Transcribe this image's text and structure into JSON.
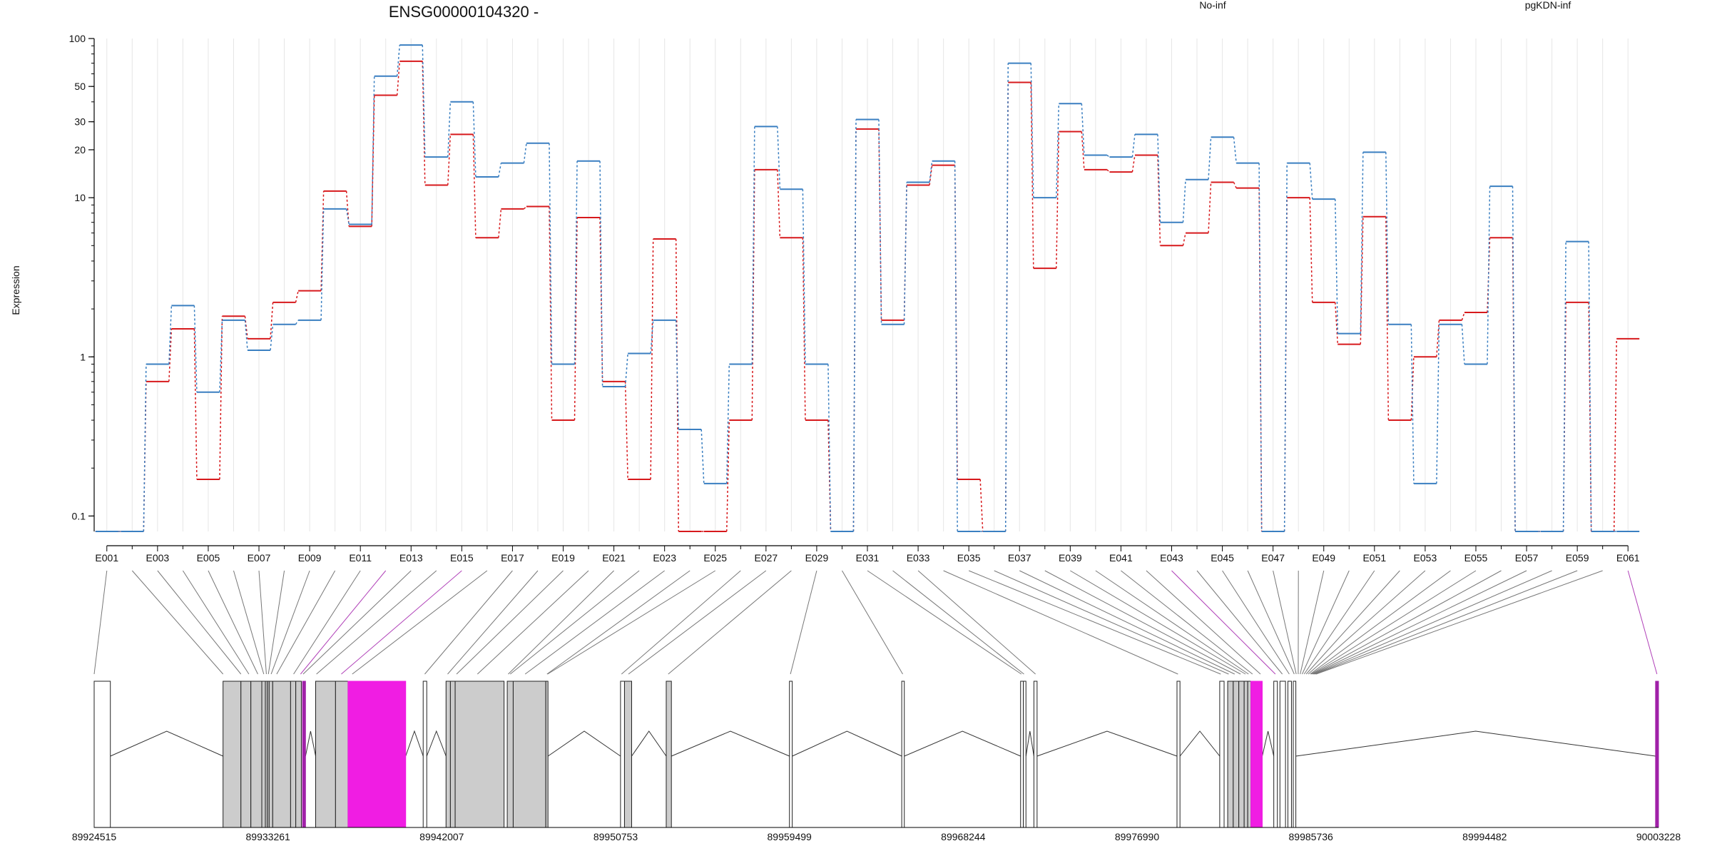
{
  "colors": {
    "no_inf": "#d7191c",
    "pgkdn_inf": "#3a7fc1",
    "axis": "#000000",
    "grid": "#e6e6e6",
    "exon_grey": "#cccccc",
    "exon_magenta": "#f01de3",
    "connector_grey": "#777777",
    "connector_magenta": "#b040b8"
  },
  "chart_data": {
    "type": "line",
    "title": "ENSG00000104320 -",
    "ylabel": "Expression",
    "yscale": "log",
    "ylim": [
      0.08,
      100
    ],
    "yticks": [
      0.1,
      1,
      10,
      20,
      30,
      50,
      100
    ],
    "ytick_labels": [
      "0.1",
      "1",
      "10",
      "20",
      "30",
      "50",
      "100"
    ],
    "grid": true,
    "legend_placement": "top",
    "x_tick_labels": [
      "E001",
      "E003",
      "E005",
      "E007",
      "E009",
      "E011",
      "E013",
      "E015",
      "E017",
      "E019",
      "E021",
      "E023",
      "E025",
      "E027",
      "E029",
      "E031",
      "E033",
      "E035",
      "E037",
      "E039",
      "E041",
      "E043",
      "E045",
      "E047",
      "E049",
      "E051",
      "E053",
      "E055",
      "E057",
      "E059",
      "E061"
    ],
    "categories": [
      "E001",
      "E002",
      "E003",
      "E004",
      "E005",
      "E006",
      "E007",
      "E008",
      "E009",
      "E010",
      "E011",
      "E012",
      "E013",
      "E014",
      "E015",
      "E016",
      "E017",
      "E018",
      "E019",
      "E020",
      "E021",
      "E022",
      "E023",
      "E024",
      "E025",
      "E026",
      "E027",
      "E028",
      "E029",
      "E030",
      "E031",
      "E032",
      "E033",
      "E034",
      "E035",
      "E036",
      "E037",
      "E038",
      "E039",
      "E040",
      "E041",
      "E042",
      "E043",
      "E044",
      "E045",
      "E046",
      "E047",
      "E048",
      "E049",
      "E050",
      "E051",
      "E052",
      "E053",
      "E054",
      "E055",
      "E056",
      "E057",
      "E058",
      "E059",
      "E060",
      "E061"
    ],
    "series": [
      {
        "name": "No-inf",
        "values": [
          0.08,
          0.08,
          0.7,
          1.5,
          0.17,
          1.8,
          1.3,
          2.2,
          2.6,
          11,
          6.6,
          44,
          72,
          12,
          25,
          5.6,
          8.5,
          8.8,
          0.4,
          7.5,
          0.7,
          0.17,
          5.5,
          0.08,
          0.08,
          0.4,
          15,
          5.6,
          0.4,
          0.08,
          27,
          1.7,
          12,
          16,
          0.17,
          0.08,
          53,
          3.6,
          26,
          15,
          14.5,
          18.5,
          5,
          6,
          12.5,
          11.5,
          0.08,
          10,
          2.2,
          1.2,
          7.6,
          0.4,
          1,
          1.7,
          1.9,
          5.6,
          0.08,
          0.08,
          2.2,
          0.08,
          1.3
        ]
      },
      {
        "name": "pgKDN-inf",
        "values": [
          0.08,
          0.08,
          0.9,
          2.1,
          0.6,
          1.7,
          1.1,
          1.6,
          1.7,
          8.5,
          6.8,
          58,
          91,
          18,
          40,
          13.5,
          16.5,
          22,
          0.9,
          17,
          0.65,
          1.05,
          1.7,
          0.35,
          0.16,
          0.9,
          28,
          11.3,
          0.9,
          0.08,
          31,
          1.6,
          12.5,
          17,
          0.08,
          0.08,
          70,
          10,
          39,
          18.5,
          18,
          25,
          7,
          13,
          24,
          16.5,
          0.08,
          16.5,
          9.8,
          1.4,
          19.3,
          1.6,
          0.16,
          1.6,
          0.9,
          11.8,
          0.08,
          0.08,
          5.3,
          0.08,
          0.08
        ]
      }
    ]
  },
  "gene_model": {
    "coord_labels": [
      "89924515",
      "89933261",
      "89942007",
      "89950753",
      "89959499",
      "89968244",
      "89976990",
      "89985736",
      "89994482",
      "90003228"
    ],
    "coord_range": [
      89924515,
      90003228
    ],
    "exons": [
      {
        "start": 89924515,
        "end": 89925330,
        "style": "white"
      },
      {
        "start": 89931000,
        "end": 89931900,
        "style": "grey"
      },
      {
        "start": 89931900,
        "end": 89932400,
        "style": "grey"
      },
      {
        "start": 89932400,
        "end": 89932950,
        "style": "grey"
      },
      {
        "start": 89932950,
        "end": 89933130,
        "style": "grey"
      },
      {
        "start": 89933130,
        "end": 89933230,
        "style": "grey"
      },
      {
        "start": 89933230,
        "end": 89933320,
        "style": "grey"
      },
      {
        "start": 89933320,
        "end": 89933500,
        "style": "grey"
      },
      {
        "start": 89933500,
        "end": 89934400,
        "style": "grey"
      },
      {
        "start": 89934400,
        "end": 89934660,
        "style": "grey"
      },
      {
        "start": 89934660,
        "end": 89934940,
        "style": "grey"
      },
      {
        "start": 89935000,
        "end": 89935150,
        "style": "purple"
      },
      {
        "start": 89935660,
        "end": 89936660,
        "style": "grey"
      },
      {
        "start": 89936660,
        "end": 89937290,
        "style": "grey"
      },
      {
        "start": 89937290,
        "end": 89940190,
        "style": "magenta"
      },
      {
        "start": 89941070,
        "end": 89941250,
        "style": "white"
      },
      {
        "start": 89942220,
        "end": 89942440,
        "style": "grey"
      },
      {
        "start": 89942440,
        "end": 89942680,
        "style": "grey"
      },
      {
        "start": 89942680,
        "end": 89945140,
        "style": "grey"
      },
      {
        "start": 89945300,
        "end": 89945600,
        "style": "grey"
      },
      {
        "start": 89945600,
        "end": 89947240,
        "style": "grey"
      },
      {
        "start": 89947240,
        "end": 89947350,
        "style": "grey"
      },
      {
        "start": 89951000,
        "end": 89951200,
        "style": "white"
      },
      {
        "start": 89951200,
        "end": 89951560,
        "style": "grey"
      },
      {
        "start": 89953300,
        "end": 89953560,
        "style": "grey"
      },
      {
        "start": 89959500,
        "end": 89959640,
        "style": "white"
      },
      {
        "start": 89965150,
        "end": 89965280,
        "style": "white"
      },
      {
        "start": 89971130,
        "end": 89971270,
        "style": "white"
      },
      {
        "start": 89971270,
        "end": 89971400,
        "style": "white"
      },
      {
        "start": 89971800,
        "end": 89971960,
        "style": "white"
      },
      {
        "start": 89979000,
        "end": 89979150,
        "style": "white"
      },
      {
        "start": 89981150,
        "end": 89981370,
        "style": "white"
      },
      {
        "start": 89981550,
        "end": 89981830,
        "style": "grey"
      },
      {
        "start": 89981830,
        "end": 89982110,
        "style": "grey"
      },
      {
        "start": 89982110,
        "end": 89982380,
        "style": "grey"
      },
      {
        "start": 89982380,
        "end": 89982560,
        "style": "grey"
      },
      {
        "start": 89982560,
        "end": 89982720,
        "style": "grey"
      },
      {
        "start": 89982720,
        "end": 89983290,
        "style": "magenta"
      },
      {
        "start": 89983870,
        "end": 89984050,
        "style": "white"
      },
      {
        "start": 89984180,
        "end": 89984460,
        "style": "white"
      },
      {
        "start": 89984580,
        "end": 89984760,
        "style": "white"
      },
      {
        "start": 89984850,
        "end": 89984980,
        "style": "white"
      },
      {
        "start": 90003080,
        "end": 90003228,
        "style": "purple"
      }
    ],
    "connector_anchors": [
      89924515,
      89931000,
      89931900,
      89932300,
      89932750,
      89933050,
      89933180,
      89933280,
      89933420,
      89933700,
      89934550,
      89934900,
      89935030,
      89935700,
      89936950,
      89937500,
      89941150,
      89942300,
      89942750,
      89943800,
      89945350,
      89945450,
      89946200,
      89947300,
      89947330,
      89951050,
      89951400,
      89953400,
      89959550,
      89965200,
      89971170,
      89971300,
      89971880,
      89979050,
      89981200,
      89981600,
      89981900,
      89982200,
      89982450,
      89982600,
      89982800,
      89983200,
      89983950,
      89984300,
      89984650,
      89984900,
      89985000,
      89985100,
      89985200,
      89985300,
      89985400,
      89985500,
      89985600,
      89985700,
      89985750,
      89985800,
      89985850,
      89985900,
      89985950,
      89986000,
      90003150
    ],
    "magenta_connectors": [
      11,
      14,
      42,
      60
    ]
  }
}
